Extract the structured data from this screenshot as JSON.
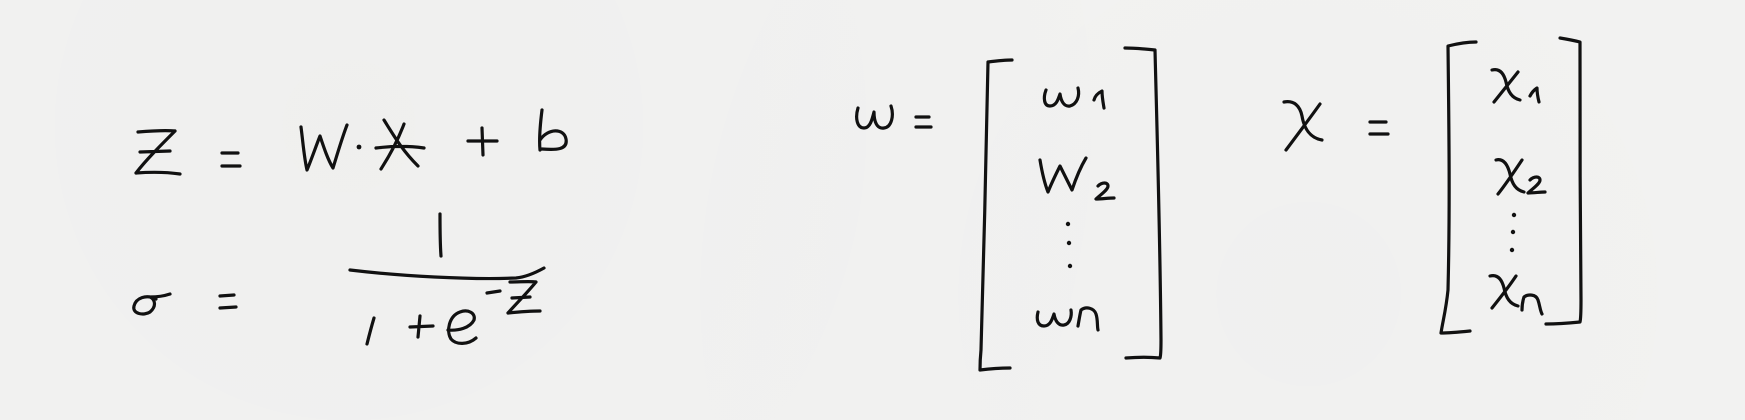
{
  "equations": {
    "linear": "z = w·x + b",
    "sigmoid": "σ = 1 / (1 + e^-z)",
    "weights_vector": "w = [w1, w2, ..., wn]",
    "input_vector": "x = [x1, x2, ..., xn]"
  }
}
